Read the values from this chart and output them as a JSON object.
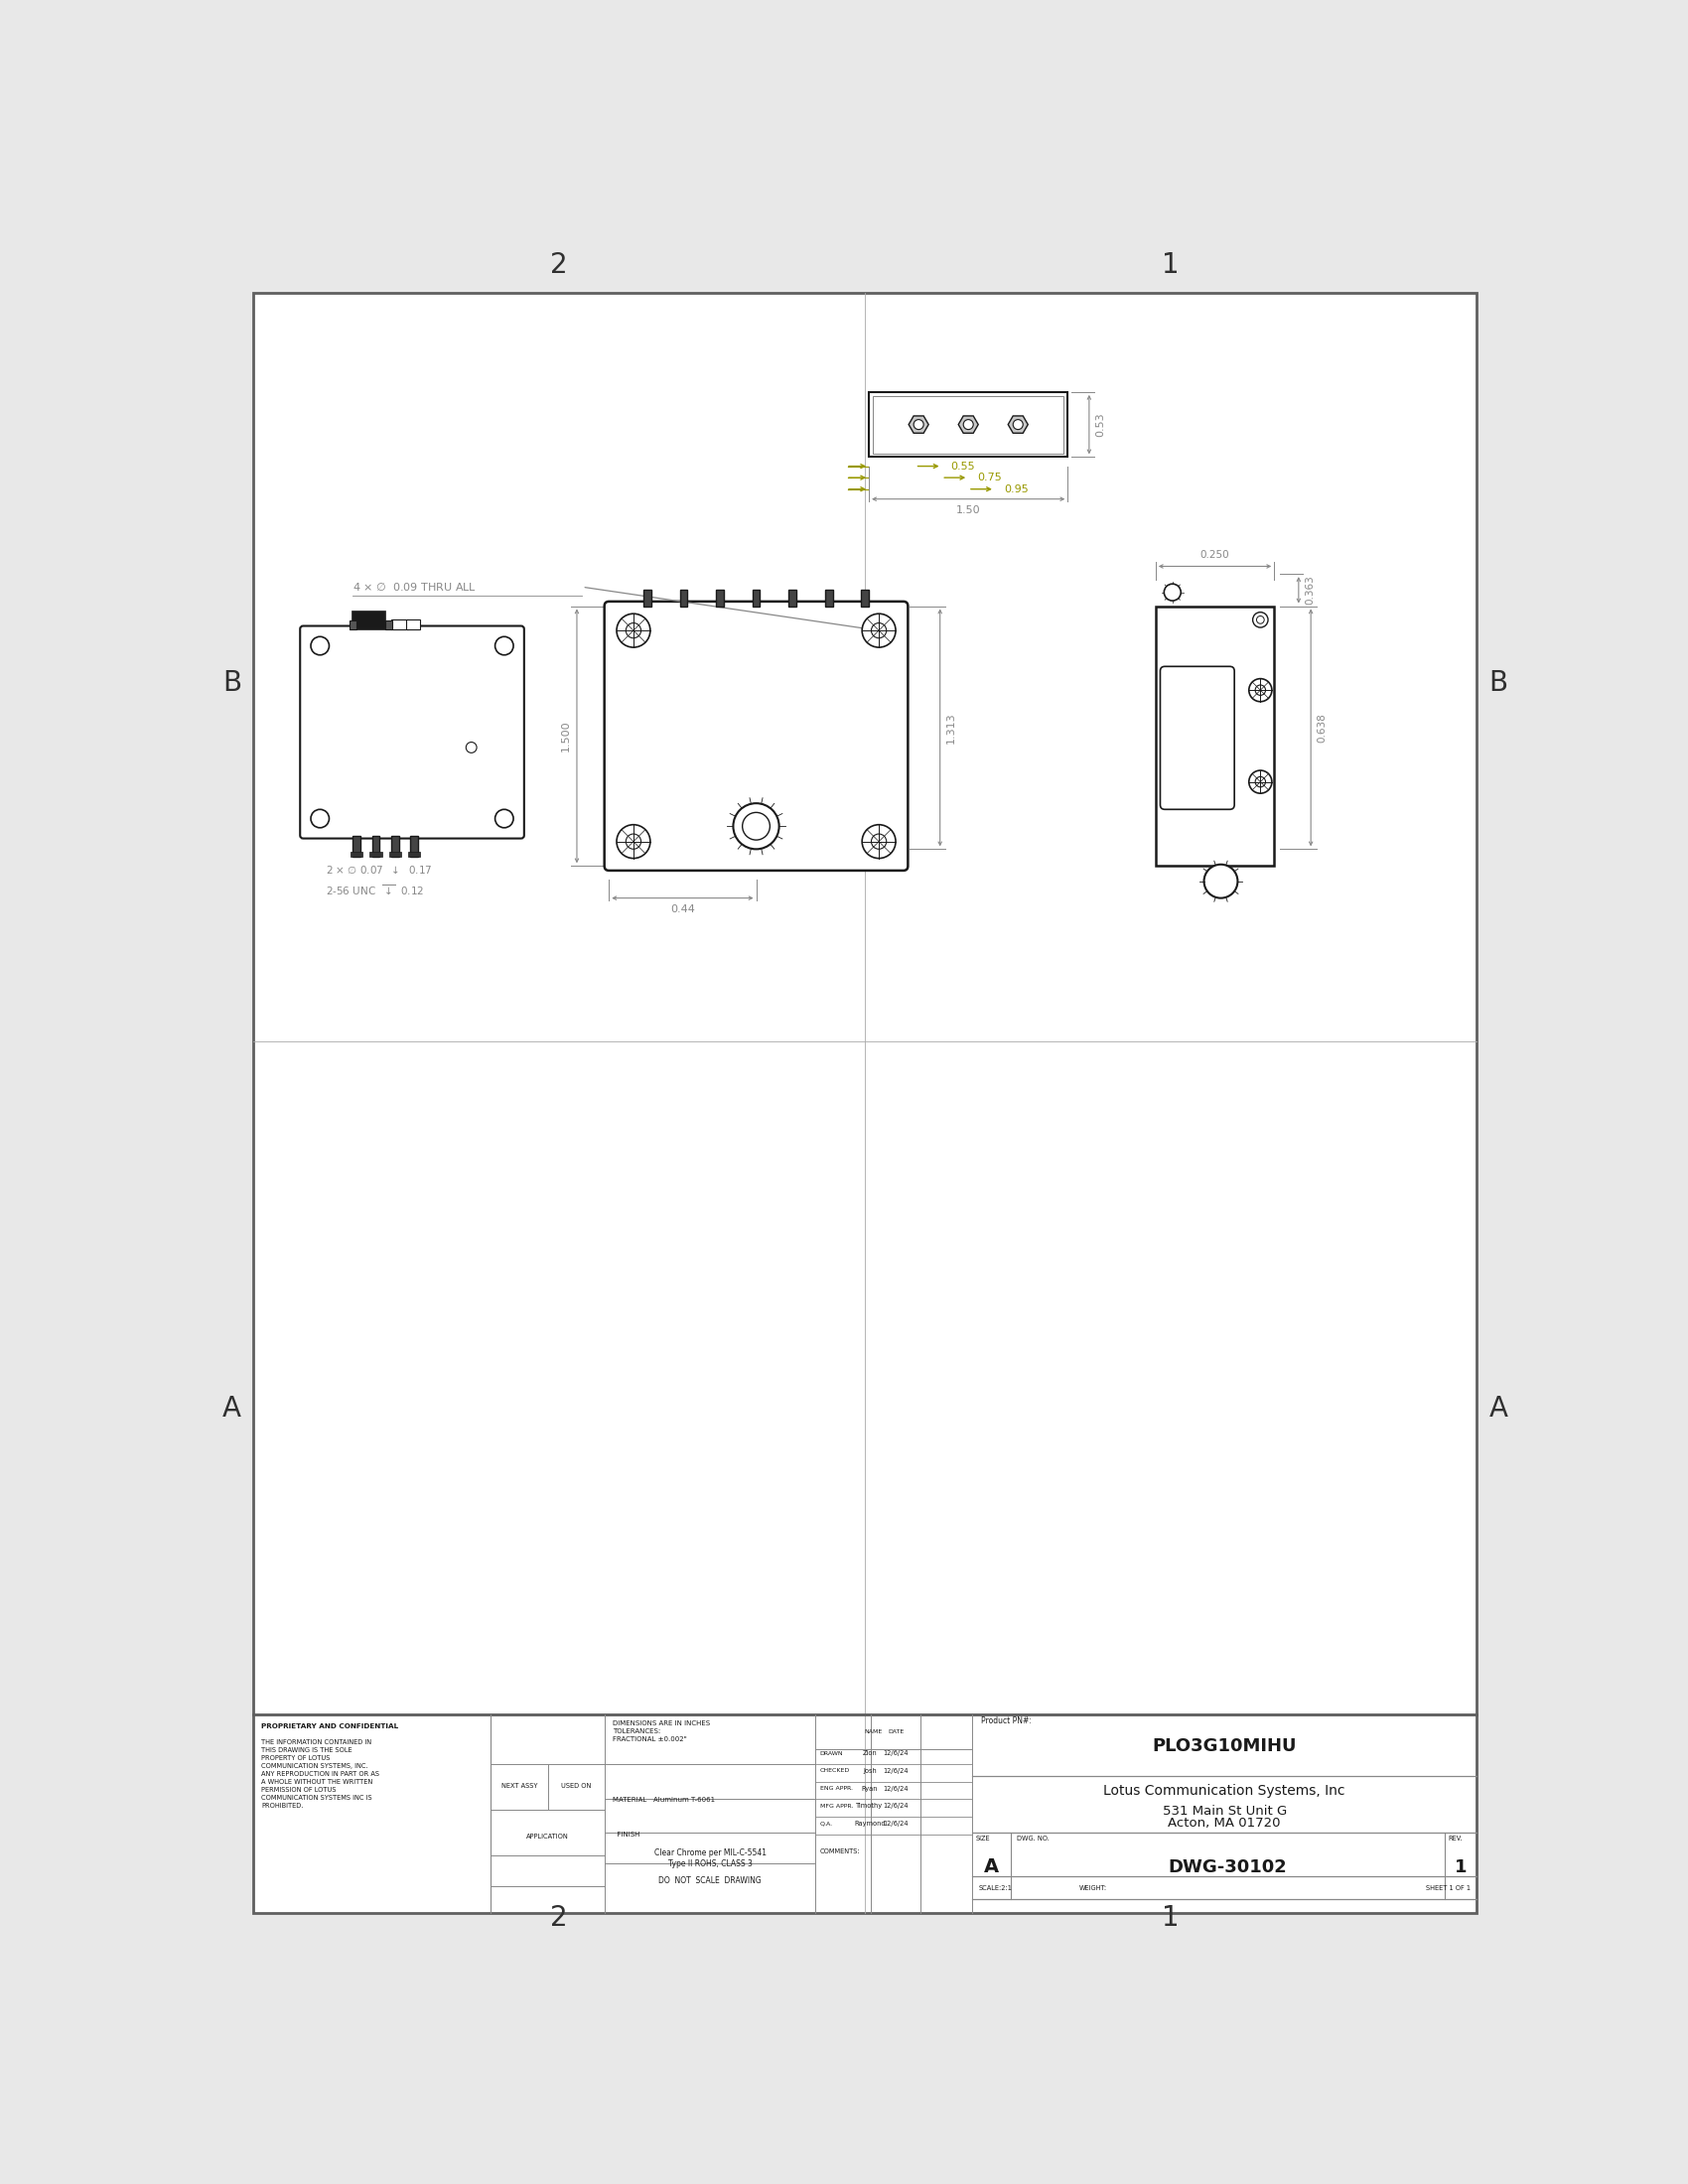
{
  "bg_color": "#e8e8e8",
  "drawing_bg": "#ffffff",
  "line_color": "#1a1a1a",
  "dim_color": "#888888",
  "yellow_dim_color": "#999900",
  "border_color": "#888888",
  "title_block": {
    "company": "Lotus Communication Systems, Inc",
    "address1": "531 Main St Unit G",
    "address2": "Acton, MA 01720",
    "product_pn": "PLO3G10MIHU",
    "dwg_no": "DWG-30102",
    "size": "A",
    "rev": "1",
    "scale": "SCALE:2:1",
    "weight": "WEIGHT:",
    "sheet": "SHEET 1 OF 1",
    "drawn_name": "Zion",
    "drawn_date": "12/6/24",
    "checked_name": "Josh",
    "checked_date": "12/6/24",
    "eng_appr_name": "Ryan",
    "eng_appr_date": "12/6/24",
    "mfg_appr_name": "Timothy",
    "mfg_appr_date": "12/6/24",
    "qa_name": "Raymond",
    "qa_date": "12/6/24",
    "material": "Aluminum T-6061",
    "finish1": "Clear Chrome per MIL-C-5541",
    "finish2": "Type II ROHS, CLASS 3"
  }
}
